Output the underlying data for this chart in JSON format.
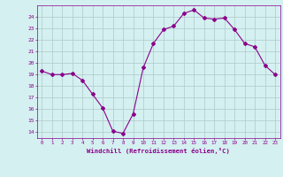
{
  "x": [
    0,
    1,
    2,
    3,
    4,
    5,
    6,
    7,
    8,
    9,
    10,
    11,
    12,
    13,
    14,
    15,
    16,
    17,
    18,
    19,
    20,
    21,
    22,
    23
  ],
  "y": [
    19.3,
    19.0,
    19.0,
    19.1,
    18.5,
    17.3,
    16.1,
    14.1,
    13.9,
    15.6,
    19.6,
    21.7,
    22.9,
    23.2,
    24.3,
    24.6,
    23.9,
    23.8,
    23.9,
    22.9,
    21.7,
    21.4,
    19.8,
    19.0
  ],
  "line_color": "#8b008b",
  "marker": "D",
  "marker_size": 2,
  "bg_color": "#d4f0f0",
  "grid_color": "#b0c8c8",
  "ylabel_ticks": [
    14,
    15,
    16,
    17,
    18,
    19,
    20,
    21,
    22,
    23,
    24
  ],
  "ylim": [
    13.5,
    25.0
  ],
  "xlim": [
    -0.5,
    23.5
  ],
  "xlabel": "Windchill (Refroidissement éolien,°C)",
  "xlabel_color": "#8b008b",
  "tick_color": "#8b008b",
  "axis_color": "#8b008b"
}
